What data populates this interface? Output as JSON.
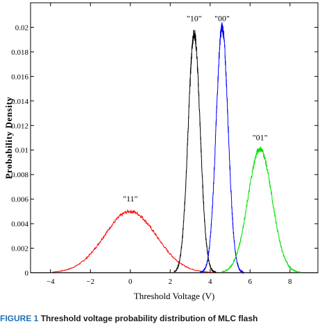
{
  "caption": {
    "figure_label": "FIGURE 1",
    "text": "Threshold voltage probability distribution of MLC flash"
  },
  "chart_data": {
    "type": "line",
    "xlabel": "Threshold Voltage (V)",
    "ylabel": "Probability Density",
    "xlim": [
      -5,
      9.4
    ],
    "ylim": [
      0,
      0.022
    ],
    "x_ticks": [
      -4,
      -2,
      0,
      2,
      4,
      6,
      8
    ],
    "y_ticks": [
      0,
      0.002,
      0.004,
      0.006,
      0.008,
      0.01,
      0.012,
      0.014,
      0.016,
      0.018,
      0.02
    ],
    "y_tick_labels": [
      "0",
      "0.002",
      "0.004",
      "0.006",
      "0.008",
      "0.01",
      "0.012",
      "0.014",
      "0.016",
      "0.018",
      "0.02"
    ],
    "grid": false,
    "series": [
      {
        "name": "\"11\"",
        "color": "#ff0000",
        "mean": 0.0,
        "sd": 1.3,
        "peak": 0.005,
        "x_range": [
          -3.9,
          4.2
        ]
      },
      {
        "name": "\"10\"",
        "color": "#000000",
        "mean": 3.2,
        "sd": 0.3,
        "peak": 0.0195,
        "x_range": [
          2.2,
          4.3
        ]
      },
      {
        "name": "\"00\"",
        "color": "#0000ff",
        "mean": 4.6,
        "sd": 0.3,
        "peak": 0.02,
        "x_range": [
          3.5,
          5.7
        ]
      },
      {
        "name": "\"01\"",
        "color": "#00e000",
        "mean": 6.5,
        "sd": 0.6,
        "peak": 0.0101,
        "x_range": [
          4.6,
          8.5
        ]
      }
    ],
    "annotations": [
      {
        "text": "\"11\"",
        "x": 0.0,
        "y": 0.0058
      },
      {
        "text": "\"10\"",
        "x": 3.2,
        "y": 0.0205
      },
      {
        "text": "\"00\"",
        "x": 4.6,
        "y": 0.0205
      },
      {
        "text": "\"01\"",
        "x": 6.5,
        "y": 0.0108
      }
    ]
  }
}
